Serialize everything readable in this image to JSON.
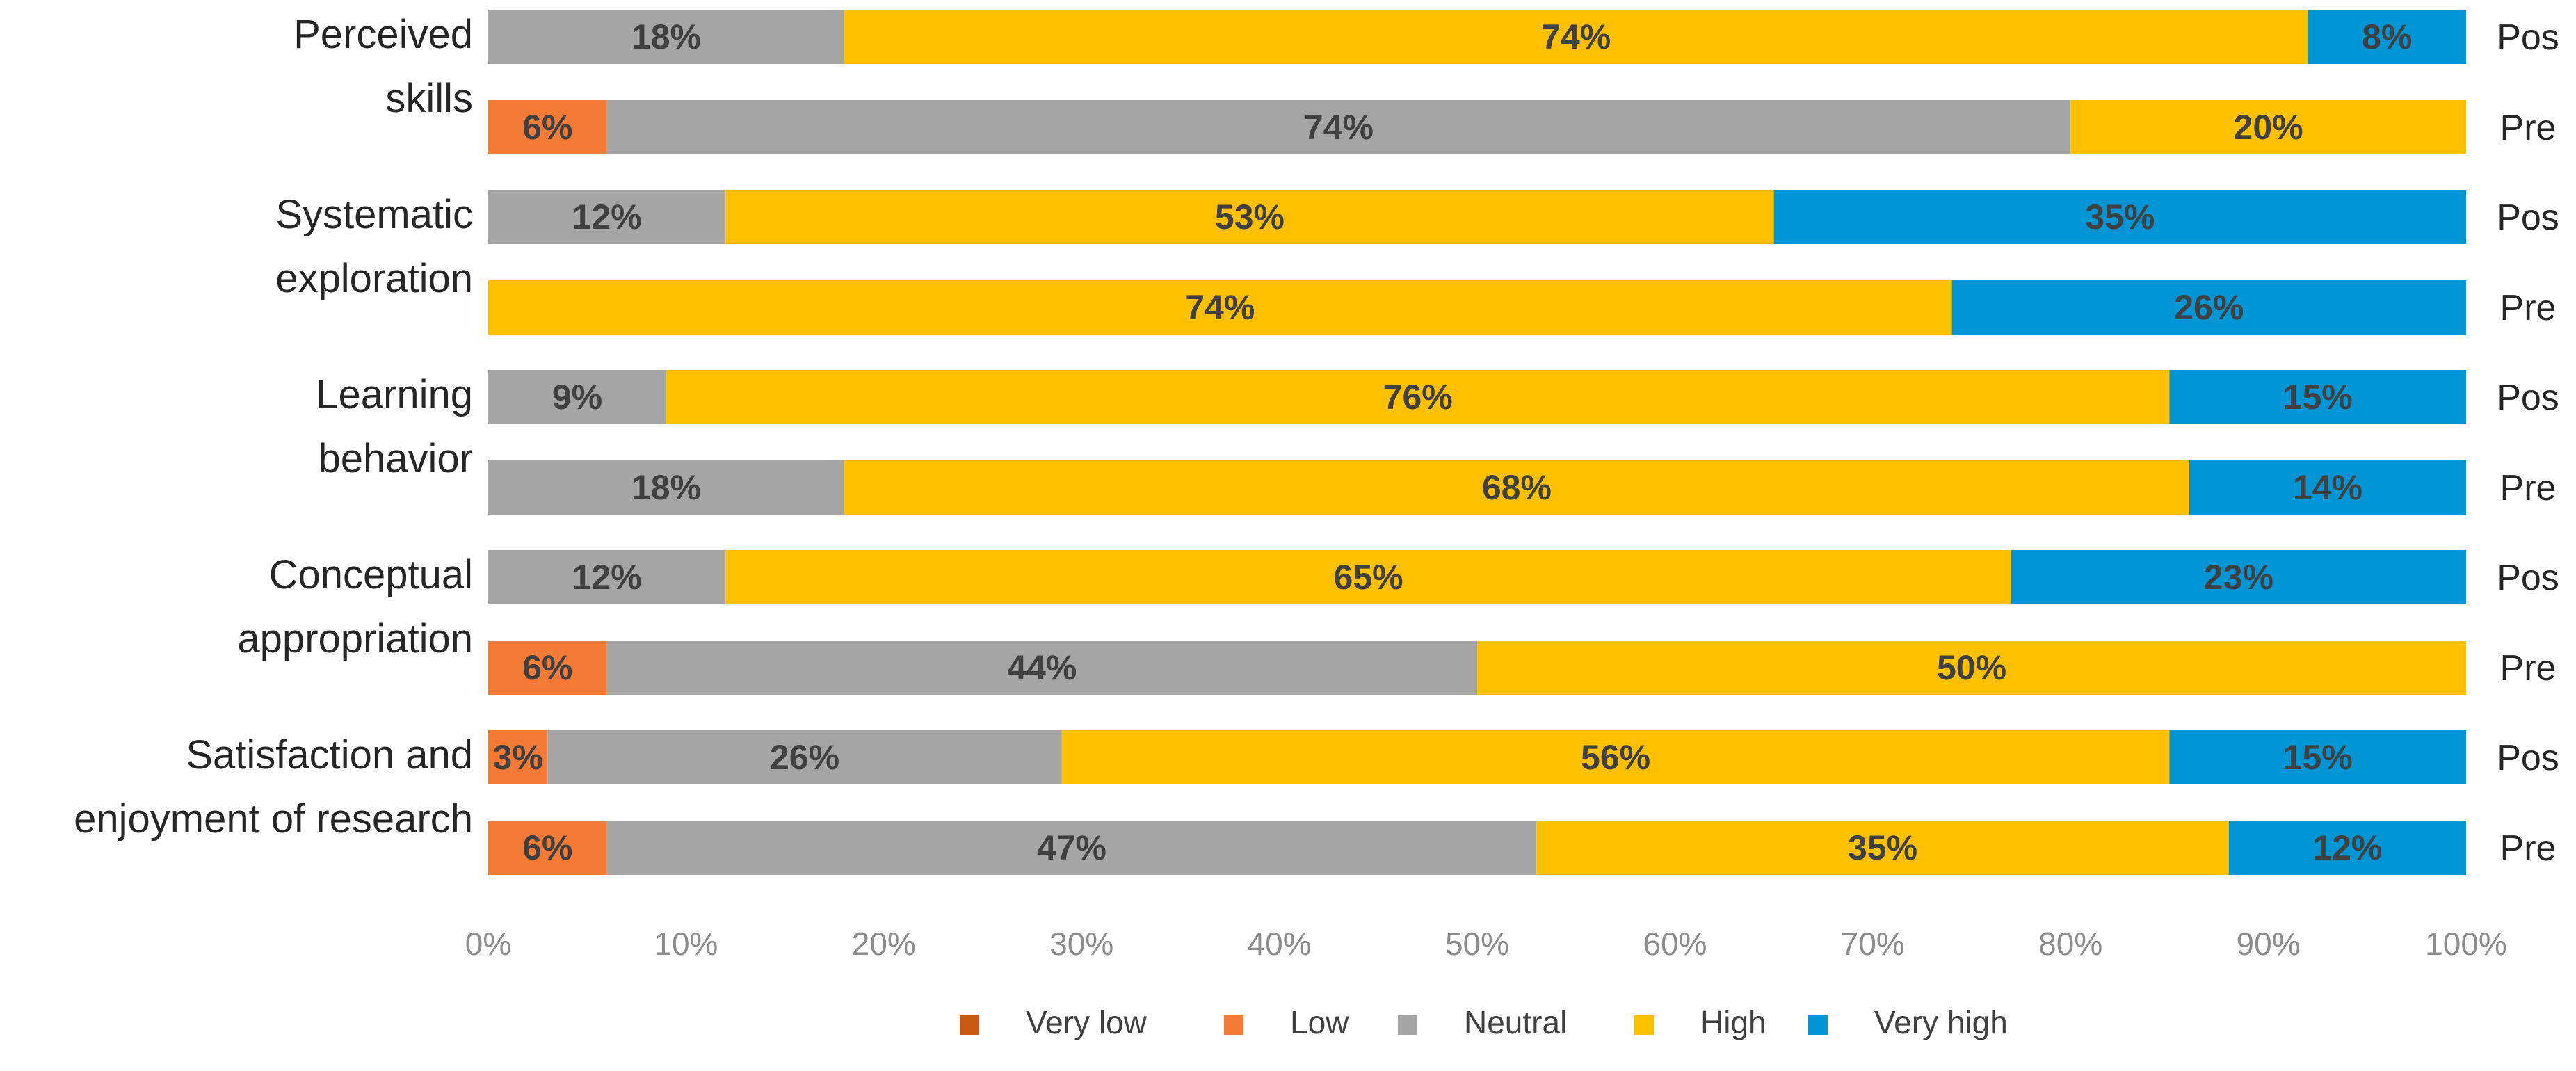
{
  "chart_data": {
    "type": "bar",
    "orientation": "horizontal",
    "stacked": true,
    "title": "",
    "xlabel": "",
    "ylabel": "",
    "xlim": [
      0,
      100
    ],
    "x_ticks": [
      "0%",
      "10%",
      "20%",
      "30%",
      "40%",
      "50%",
      "60%",
      "70%",
      "80%",
      "90%",
      "100%"
    ],
    "legend_position": "bottom",
    "categories": [
      {
        "id": "very_low",
        "label": "Very low",
        "color": "#C55A11"
      },
      {
        "id": "low",
        "label": "Low",
        "color": "#F47B36"
      },
      {
        "id": "neutral",
        "label": "Neutral",
        "color": "#A5A5A5"
      },
      {
        "id": "high",
        "label": "High",
        "color": "#FFC000"
      },
      {
        "id": "very_high",
        "label": "Very high",
        "color": "#0096D6"
      }
    ],
    "groups": [
      {
        "label_lines": [
          "Perceived",
          "skills"
        ],
        "bars": [
          {
            "phase": "Pos",
            "values": {
              "very_low": 0,
              "low": 0,
              "neutral": 18,
              "high": 74,
              "very_high": 8
            },
            "labels": {
              "neutral": "18%",
              "high": "74%",
              "very_high": "8%"
            }
          },
          {
            "phase": "Pre",
            "values": {
              "very_low": 0,
              "low": 6,
              "neutral": 74,
              "high": 20,
              "very_high": 0
            },
            "labels": {
              "low": "6%",
              "neutral": "74%",
              "high": "20%"
            }
          }
        ]
      },
      {
        "label_lines": [
          "Systematic",
          "exploration"
        ],
        "bars": [
          {
            "phase": "Pos",
            "values": {
              "very_low": 0,
              "low": 0,
              "neutral": 12,
              "high": 53,
              "very_high": 35
            },
            "labels": {
              "neutral": "12%",
              "high": "53%",
              "very_high": "35%"
            }
          },
          {
            "phase": "Pre",
            "values": {
              "very_low": 0,
              "low": 0,
              "neutral": 0,
              "high": 74,
              "very_high": 26
            },
            "labels": {
              "high": "74%",
              "very_high": "26%"
            }
          }
        ]
      },
      {
        "label_lines": [
          "Learning",
          "behavior"
        ],
        "bars": [
          {
            "phase": "Pos",
            "values": {
              "very_low": 0,
              "low": 0,
              "neutral": 9,
              "high": 76,
              "very_high": 15
            },
            "labels": {
              "neutral": "9%",
              "high": "76%",
              "very_high": "15%"
            }
          },
          {
            "phase": "Pre",
            "values": {
              "very_low": 0,
              "low": 0,
              "neutral": 18,
              "high": 68,
              "very_high": 14
            },
            "labels": {
              "neutral": "18%",
              "high": "68%",
              "very_high": "14%"
            }
          }
        ]
      },
      {
        "label_lines": [
          "Conceptual",
          "appropriation"
        ],
        "bars": [
          {
            "phase": "Pos",
            "values": {
              "very_low": 0,
              "low": 0,
              "neutral": 12,
              "high": 65,
              "very_high": 23
            },
            "labels": {
              "neutral": "12%",
              "high": "65%",
              "very_high": "23%"
            }
          },
          {
            "phase": "Pre",
            "values": {
              "very_low": 0,
              "low": 6,
              "neutral": 44,
              "high": 50,
              "very_high": 0
            },
            "labels": {
              "low": "6%",
              "neutral": "44%",
              "high": "50%"
            }
          }
        ]
      },
      {
        "label_lines": [
          "Satisfaction and",
          "enjoyment of research"
        ],
        "bars": [
          {
            "phase": "Pos",
            "values": {
              "very_low": 0,
              "low": 3,
              "neutral": 26,
              "high": 56,
              "very_high": 15
            },
            "labels": {
              "low": "3%",
              "neutral": "26%",
              "high": "56%",
              "very_high": "15%"
            }
          },
          {
            "phase": "Pre",
            "values": {
              "very_low": 0,
              "low": 6,
              "neutral": 47,
              "high": 35,
              "very_high": 12
            },
            "labels": {
              "low": "6%",
              "neutral": "47%",
              "high": "35%",
              "very_high": "12%"
            }
          }
        ]
      }
    ]
  }
}
